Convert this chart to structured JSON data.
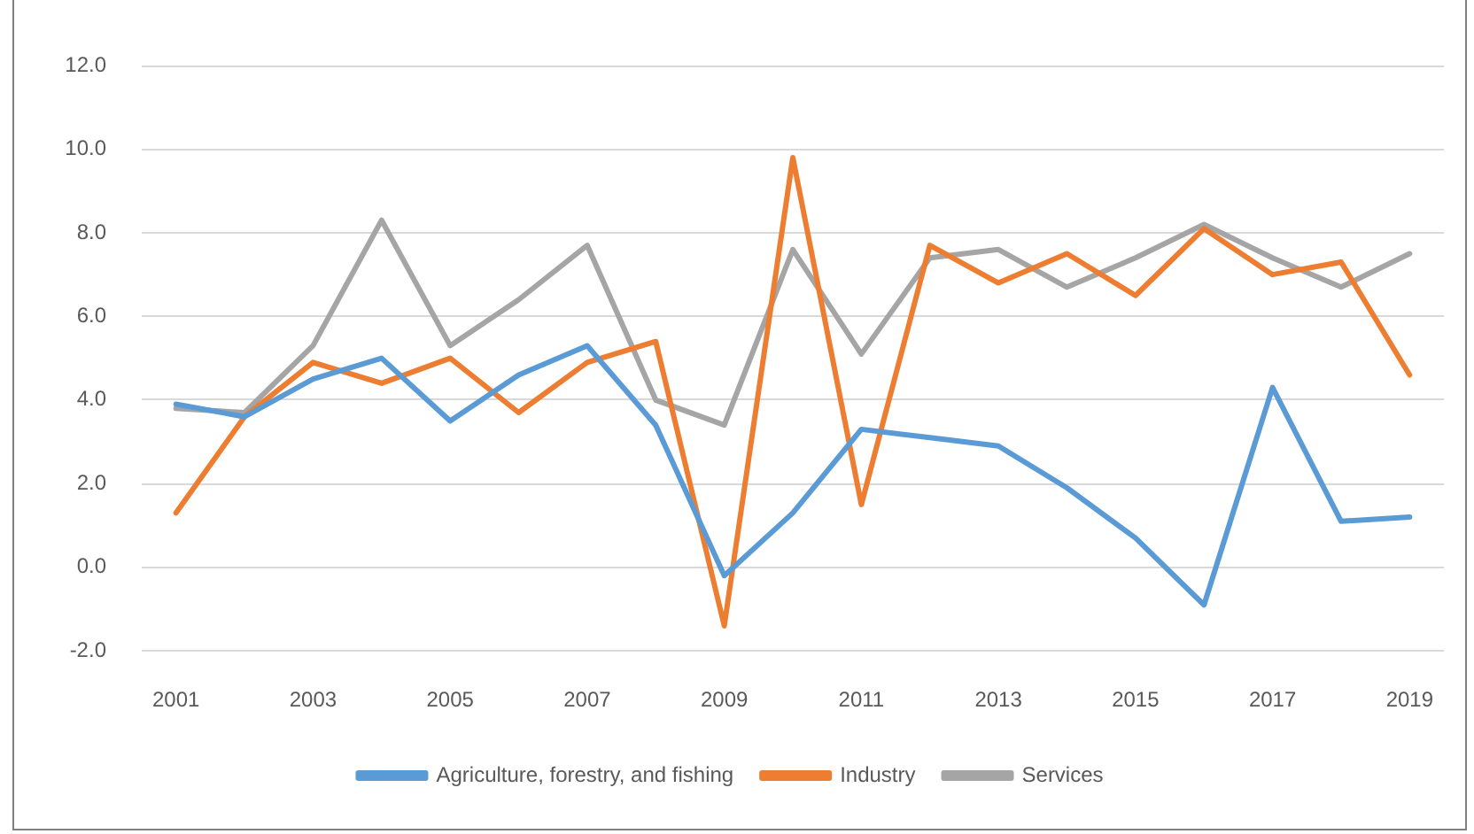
{
  "chart_data": {
    "type": "line",
    "categories": [
      "2001",
      null,
      "2003",
      null,
      "2005",
      null,
      "2007",
      null,
      "2009",
      null,
      "2011",
      null,
      "2013",
      null,
      "2015",
      null,
      "2017",
      null,
      "2019"
    ],
    "series": [
      {
        "name": "Agriculture, forestry, and fishing",
        "color": "#5b9bd5",
        "values": [
          3.9,
          3.6,
          4.5,
          5.0,
          3.5,
          4.6,
          5.3,
          3.4,
          -0.2,
          1.3,
          3.3,
          3.1,
          2.9,
          1.9,
          0.7,
          -0.9,
          4.3,
          1.1,
          1.2
        ]
      },
      {
        "name": "Industry",
        "color": "#ed7d31",
        "values": [
          1.3,
          3.6,
          4.9,
          4.4,
          5.0,
          3.7,
          4.9,
          5.4,
          -1.4,
          9.8,
          1.5,
          7.7,
          6.8,
          7.5,
          6.5,
          8.1,
          7.0,
          7.3,
          4.6
        ]
      },
      {
        "name": "Services",
        "color": "#a5a5a5",
        "values": [
          3.8,
          3.7,
          5.3,
          8.3,
          5.3,
          6.4,
          7.7,
          4.0,
          3.4,
          7.6,
          5.1,
          7.4,
          7.6,
          6.7,
          7.4,
          8.2,
          7.4,
          6.7,
          7.5
        ]
      }
    ],
    "ylim": [
      -2,
      12
    ],
    "yticks": [
      {
        "value": -2,
        "label": "-2.0"
      },
      {
        "value": 0,
        "label": "0.0"
      },
      {
        "value": 2,
        "label": "2.0"
      },
      {
        "value": 4,
        "label": "4.0"
      },
      {
        "value": 6,
        "label": "6.0"
      },
      {
        "value": 8,
        "label": "8.0"
      },
      {
        "value": 10,
        "label": "10.0"
      },
      {
        "value": 12,
        "label": "12.0"
      }
    ],
    "grid": "y",
    "legend": "bottom"
  }
}
